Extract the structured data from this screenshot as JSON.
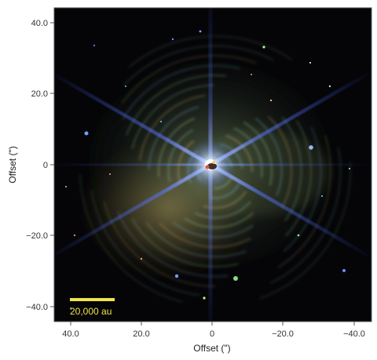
{
  "x_axis": {
    "title": "Offset (\")",
    "ticks": [
      "40.0",
      "20.0",
      "0",
      "−20.0",
      "−40.0"
    ]
  },
  "y_axis": {
    "title": "Offset (\")",
    "ticks": [
      "40.0",
      "20.0",
      "0",
      "−20.0",
      "−40.0"
    ]
  },
  "scale_bar": {
    "label": "20,000 au"
  },
  "colors": {
    "background": "#050508",
    "scale_bar": "#f0e34a",
    "spikes": "#4a6cff"
  }
}
